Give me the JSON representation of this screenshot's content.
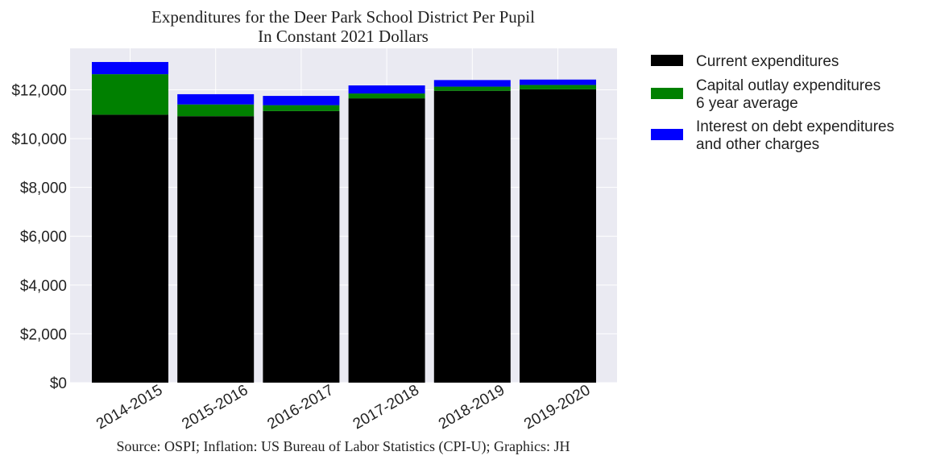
{
  "chart_data": {
    "type": "bar",
    "stacked": true,
    "title": [
      "Expenditures for the Deer Park School District Per Pupil",
      "In Constant 2021 Dollars"
    ],
    "xlabel": "",
    "ylabel": "",
    "categories": [
      "2014-2015",
      "2015-2016",
      "2016-2017",
      "2017-2018",
      "2018-2019",
      "2019-2020"
    ],
    "ylim": [
      0,
      13700
    ],
    "yticks": [
      0,
      2000,
      4000,
      6000,
      8000,
      10000,
      12000
    ],
    "ytick_labels": [
      "$0",
      "$2,000",
      "$4,000",
      "$6,000",
      "$8,000",
      "$10,000",
      "$12,000"
    ],
    "grid": true,
    "legend_position": "outside-right",
    "series": [
      {
        "name": [
          "Current expenditures"
        ],
        "color": "#000000",
        "values": [
          10980,
          10920,
          11130,
          11650,
          11960,
          12020
        ]
      },
      {
        "name": [
          "Capital outlay expenditures",
          "6 year average"
        ],
        "color": "#008000",
        "values": [
          1660,
          480,
          240,
          200,
          170,
          180
        ]
      },
      {
        "name": [
          "Interest on debt expenditures",
          "and other charges"
        ],
        "color": "#0000ff",
        "values": [
          500,
          420,
          380,
          330,
          270,
          220
        ]
      }
    ],
    "source": "Source: OSPI; Inflation: US Bureau of Labor Statistics (CPI-U); Graphics: JH"
  }
}
